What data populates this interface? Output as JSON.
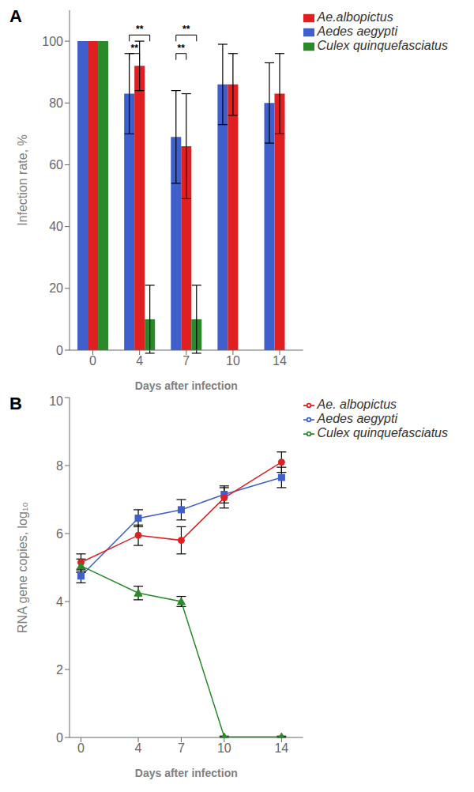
{
  "chart_data": [
    {
      "type": "bar",
      "title": "A",
      "categories": [
        "0",
        "4",
        "7",
        "10",
        "14"
      ],
      "series": [
        {
          "name": "Aedes aegypti",
          "color": "#3f5fcc",
          "values": [
            100,
            83,
            69,
            86,
            80
          ],
          "errors": [
            0,
            13,
            15,
            13,
            13
          ]
        },
        {
          "name": "Ae.albopictus",
          "color": "#e02020",
          "values": [
            100,
            92,
            66,
            86,
            83
          ],
          "errors": [
            0,
            8,
            17,
            10,
            13
          ]
        },
        {
          "name": "Culex quinquefasciatus",
          "color": "#2a8a2a",
          "values": [
            100,
            10,
            10,
            0,
            0
          ],
          "errors": [
            0,
            11,
            11,
            0,
            0
          ]
        }
      ],
      "xlabel": "Days after infection",
      "ylabel": "Infection rate, %",
      "ylim": [
        0,
        110
      ],
      "yticks": [
        0,
        20,
        40,
        60,
        80,
        100
      ],
      "grid": false,
      "legend": "top",
      "annotations": [
        {
          "text": "**",
          "category": "4",
          "from": "Aedes aegypti",
          "to": "Ae.albopictus",
          "y": 96
        },
        {
          "text": "**",
          "category": "4",
          "from": "Aedes aegypti",
          "to": "Culex quinquefasciatus",
          "y": 102
        },
        {
          "text": "**",
          "category": "7",
          "from": "Aedes aegypti",
          "to": "Ae.albopictus",
          "y": 96
        },
        {
          "text": "**",
          "category": "7",
          "from": "Aedes aegypti",
          "to": "Culex quinquefasciatus",
          "y": 102
        }
      ]
    },
    {
      "type": "line",
      "title": "B",
      "x": [
        0,
        4,
        7,
        10,
        14
      ],
      "series": [
        {
          "name": "Aedes aegypti",
          "color": "#3f5fcc",
          "marker": "square",
          "values": [
            4.75,
            6.45,
            6.7,
            7.15,
            7.65
          ],
          "errors": [
            0.2,
            0.25,
            0.3,
            0.25,
            0.3
          ]
        },
        {
          "name": "Ae. albopictus",
          "color": "#e02020",
          "marker": "circle",
          "values": [
            5.15,
            5.95,
            5.8,
            7.05,
            8.1
          ],
          "errors": [
            0.25,
            0.3,
            0.4,
            0.3,
            0.3
          ]
        },
        {
          "name": "Culex quinquefasciatus",
          "color": "#2a8a2a",
          "marker": "triangle",
          "values": [
            5.05,
            4.25,
            4.0,
            0.02,
            0.02
          ],
          "errors": [
            0.2,
            0.2,
            0.15,
            0.02,
            0.02
          ]
        }
      ],
      "xlabel": "Days after infection",
      "ylabel": "RNA gene copies, log₁₀",
      "xlim": [
        -0.8,
        15.5
      ],
      "xticks": [
        0,
        4,
        7,
        10,
        14
      ],
      "ylim": [
        0,
        10
      ],
      "yticks": [
        0,
        2,
        4,
        6,
        8,
        10
      ],
      "grid": false,
      "legend": "top"
    }
  ]
}
